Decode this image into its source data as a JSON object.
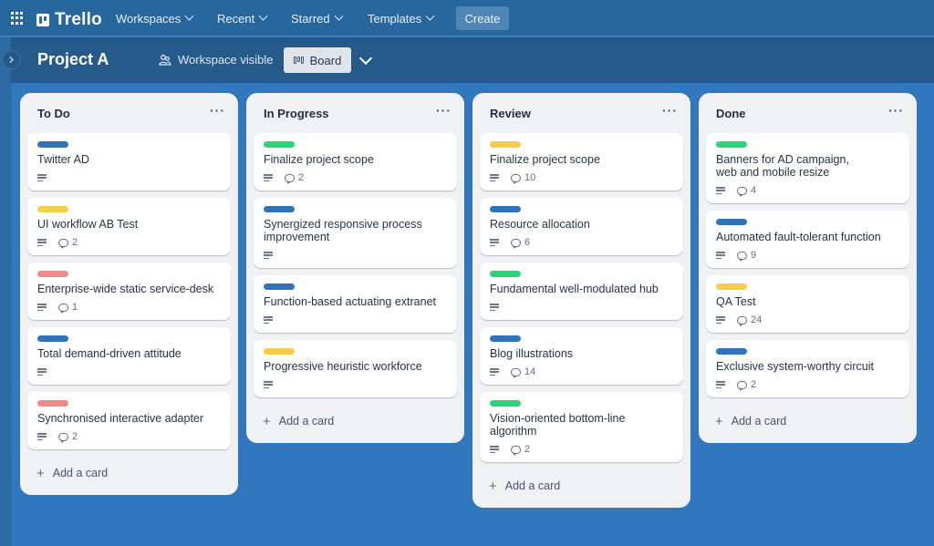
{
  "topnav": {
    "app_name": "Trello",
    "menus": [
      {
        "label": "Workspaces"
      },
      {
        "label": "Recent"
      },
      {
        "label": "Starred"
      },
      {
        "label": "Templates"
      }
    ],
    "create_label": "Create"
  },
  "board": {
    "title": "Project A",
    "visibility": "Workspace visible",
    "view_label": "Board"
  },
  "colors": {
    "blue": "#2f74b8",
    "yellow": "#f5cd47",
    "red": "#f08a8a",
    "green": "#2bd47a"
  },
  "lists": [
    {
      "title": "To Do",
      "add_label": "Add a card",
      "cards": [
        {
          "label": "blue",
          "title": "Twitter AD",
          "comments": null
        },
        {
          "label": "yellow",
          "title": "UI workflow AB Test",
          "comments": "2"
        },
        {
          "label": "red",
          "title": "Enterprise-wide static service-desk",
          "comments": "1"
        },
        {
          "label": "blue",
          "title": "Total demand-driven attitude",
          "comments": null
        },
        {
          "label": "red",
          "title": "Synchronised interactive adapter",
          "comments": "2"
        }
      ]
    },
    {
      "title": "In Progress",
      "add_label": "Add a card",
      "cards": [
        {
          "label": "green",
          "title": "Finalize project scope",
          "comments": "2"
        },
        {
          "label": "blue",
          "title": "Synergized responsive process improvement",
          "comments": null
        },
        {
          "label": "blue",
          "title": "Function-based actuating extranet",
          "comments": null
        },
        {
          "label": "yellow",
          "title": "Progressive heuristic workforce",
          "comments": null
        }
      ]
    },
    {
      "title": "Review",
      "add_label": "Add a card",
      "cards": [
        {
          "label": "yellow",
          "title": "Finalize project scope",
          "comments": "10"
        },
        {
          "label": "blue",
          "title": "Resource allocation",
          "comments": "6"
        },
        {
          "label": "green",
          "title": "Fundamental well-modulated hub",
          "comments": null
        },
        {
          "label": "blue",
          "title": "Blog illustrations",
          "comments": "14"
        },
        {
          "label": "green",
          "title": "Vision-oriented bottom-line algorithm",
          "comments": "2"
        }
      ]
    },
    {
      "title": "Done",
      "add_label": "Add a card",
      "cards": [
        {
          "label": "green",
          "title": "Banners for AD campaign, web and mobile resize",
          "comments": "4"
        },
        {
          "label": "blue",
          "title": "Automated fault-tolerant function",
          "comments": "9"
        },
        {
          "label": "yellow",
          "title": "QA Test",
          "comments": "24"
        },
        {
          "label": "blue",
          "title": "Exclusive system-worthy circuit",
          "comments": "2"
        }
      ]
    }
  ]
}
